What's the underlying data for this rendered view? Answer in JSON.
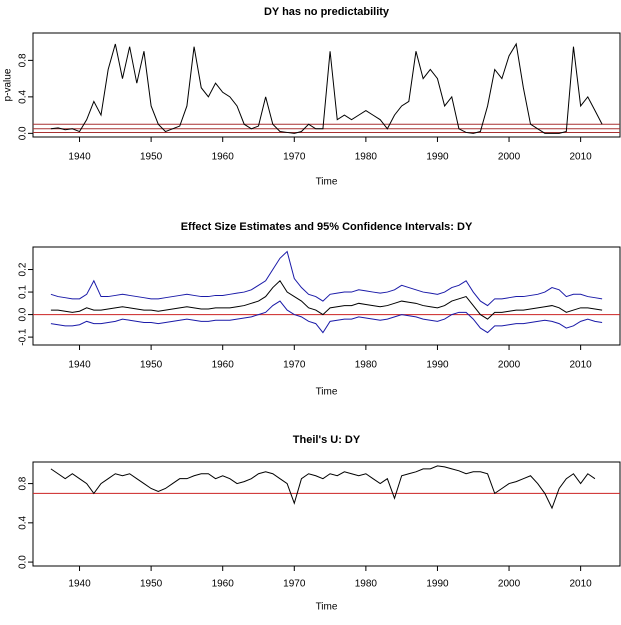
{
  "chart_data": [
    {
      "type": "line",
      "title": "DY has no predictability",
      "xlabel": "Time",
      "ylabel": "p-value",
      "xlim": [
        1933.5,
        2015.5
      ],
      "xticks": [
        1940,
        1950,
        1960,
        1970,
        1980,
        1990,
        2000,
        2010
      ],
      "ylim": [
        -0.04,
        1.1
      ],
      "yticks": [
        {
          "value": 0,
          "label": "0.0"
        },
        0.4,
        0.8
      ],
      "x": [
        1936,
        1937,
        1938,
        1939,
        1940,
        1941,
        1942,
        1943,
        1944,
        1945,
        1946,
        1947,
        1948,
        1949,
        1950,
        1951,
        1952,
        1953,
        1954,
        1955,
        1956,
        1957,
        1958,
        1959,
        1960,
        1961,
        1962,
        1963,
        1964,
        1965,
        1966,
        1967,
        1968,
        1969,
        1970,
        1971,
        1972,
        1973,
        1974,
        1975,
        1976,
        1977,
        1978,
        1979,
        1980,
        1981,
        1982,
        1983,
        1984,
        1985,
        1986,
        1987,
        1988,
        1989,
        1990,
        1991,
        1992,
        1993,
        1994,
        1995,
        1996,
        1997,
        1998,
        1999,
        2000,
        2001,
        2002,
        2003,
        2004,
        2005,
        2006,
        2007,
        2008,
        2009,
        2010,
        2011,
        2012,
        2013
      ],
      "series": [
        {
          "color": "#000000",
          "values": [
            0.05,
            0.06,
            0.04,
            0.05,
            0.02,
            0.15,
            0.35,
            0.2,
            0.7,
            0.98,
            0.6,
            0.95,
            0.55,
            0.9,
            0.3,
            0.1,
            0.02,
            0.05,
            0.08,
            0.3,
            0.95,
            0.5,
            0.4,
            0.55,
            0.45,
            0.4,
            0.3,
            0.1,
            0.05,
            0.08,
            0.4,
            0.1,
            0.02,
            0.01,
            0.0,
            0.02,
            0.1,
            0.05,
            0.05,
            0.9,
            0.15,
            0.2,
            0.15,
            0.2,
            0.25,
            0.2,
            0.15,
            0.05,
            0.2,
            0.3,
            0.35,
            0.9,
            0.6,
            0.7,
            0.6,
            0.3,
            0.4,
            0.05,
            0.01,
            0.0,
            0.02,
            0.3,
            0.7,
            0.6,
            0.85,
            0.98,
            0.5,
            0.1,
            0.05,
            0.0,
            0.0,
            0.0,
            0.02,
            0.95,
            0.3,
            0.4,
            0.25,
            0.1
          ]
        }
      ],
      "hlines": {
        "color": "#a83232",
        "values": [
          0.01,
          0.05,
          0.1
        ]
      }
    },
    {
      "type": "line",
      "title": "Effect Size Estimates and 95% Confidence Intervals: DY",
      "xlabel": "Time",
      "xlim": [
        1933.5,
        2015.5
      ],
      "xticks": [
        1940,
        1950,
        1960,
        1970,
        1980,
        1990,
        2000,
        2010
      ],
      "ylim": [
        -0.135,
        0.3
      ],
      "yticks": [
        -0.1,
        {
          "value": 0,
          "label": "0.0"
        },
        0.1,
        0.2
      ],
      "x": [
        1936,
        1937,
        1938,
        1939,
        1940,
        1941,
        1942,
        1943,
        1944,
        1945,
        1946,
        1947,
        1948,
        1949,
        1950,
        1951,
        1952,
        1953,
        1954,
        1955,
        1956,
        1957,
        1958,
        1959,
        1960,
        1961,
        1962,
        1963,
        1964,
        1965,
        1966,
        1967,
        1968,
        1969,
        1970,
        1971,
        1972,
        1973,
        1974,
        1975,
        1976,
        1977,
        1978,
        1979,
        1980,
        1981,
        1982,
        1983,
        1984,
        1985,
        1986,
        1987,
        1988,
        1989,
        1990,
        1991,
        1992,
        1993,
        1994,
        1995,
        1996,
        1997,
        1998,
        1999,
        2000,
        2001,
        2002,
        2003,
        2004,
        2005,
        2006,
        2007,
        2008,
        2009,
        2010,
        2011,
        2012,
        2013
      ],
      "series": [
        {
          "color": "#1a1aa8",
          "values": [
            0.09,
            0.08,
            0.075,
            0.07,
            0.07,
            0.09,
            0.15,
            0.08,
            0.08,
            0.085,
            0.09,
            0.085,
            0.08,
            0.075,
            0.07,
            0.07,
            0.075,
            0.08,
            0.085,
            0.09,
            0.085,
            0.08,
            0.08,
            0.085,
            0.085,
            0.09,
            0.095,
            0.1,
            0.11,
            0.13,
            0.15,
            0.2,
            0.25,
            0.28,
            0.16,
            0.12,
            0.09,
            0.08,
            0.06,
            0.09,
            0.095,
            0.1,
            0.1,
            0.11,
            0.105,
            0.1,
            0.095,
            0.1,
            0.11,
            0.13,
            0.12,
            0.11,
            0.1,
            0.095,
            0.09,
            0.1,
            0.12,
            0.13,
            0.15,
            0.1,
            0.06,
            0.04,
            0.07,
            0.07,
            0.075,
            0.08,
            0.08,
            0.085,
            0.09,
            0.1,
            0.12,
            0.11,
            0.08,
            0.09,
            0.09,
            0.08,
            0.075,
            0.07
          ]
        },
        {
          "color": "#000000",
          "values": [
            0.02,
            0.02,
            0.015,
            0.01,
            0.015,
            0.03,
            0.02,
            0.02,
            0.025,
            0.03,
            0.035,
            0.03,
            0.025,
            0.02,
            0.02,
            0.015,
            0.02,
            0.025,
            0.03,
            0.035,
            0.03,
            0.025,
            0.025,
            0.03,
            0.03,
            0.03,
            0.035,
            0.04,
            0.05,
            0.06,
            0.08,
            0.12,
            0.15,
            0.1,
            0.08,
            0.06,
            0.03,
            0.02,
            0.0,
            0.03,
            0.035,
            0.04,
            0.04,
            0.05,
            0.045,
            0.04,
            0.035,
            0.04,
            0.05,
            0.06,
            0.055,
            0.05,
            0.04,
            0.035,
            0.03,
            0.04,
            0.06,
            0.07,
            0.08,
            0.04,
            0.0,
            -0.02,
            0.01,
            0.01,
            0.015,
            0.02,
            0.02,
            0.025,
            0.03,
            0.035,
            0.04,
            0.03,
            0.01,
            0.02,
            0.03,
            0.03,
            0.025,
            0.02
          ]
        },
        {
          "color": "#1a1aa8",
          "values": [
            -0.04,
            -0.045,
            -0.05,
            -0.05,
            -0.045,
            -0.03,
            -0.04,
            -0.04,
            -0.035,
            -0.03,
            -0.02,
            -0.025,
            -0.03,
            -0.035,
            -0.035,
            -0.04,
            -0.035,
            -0.03,
            -0.025,
            -0.02,
            -0.025,
            -0.03,
            -0.03,
            -0.025,
            -0.025,
            -0.025,
            -0.02,
            -0.015,
            -0.01,
            0.0,
            0.01,
            0.04,
            0.06,
            0.02,
            0.0,
            -0.01,
            -0.03,
            -0.04,
            -0.08,
            -0.03,
            -0.025,
            -0.02,
            -0.02,
            -0.01,
            -0.015,
            -0.02,
            -0.025,
            -0.02,
            -0.01,
            0.0,
            -0.005,
            -0.01,
            -0.02,
            -0.025,
            -0.03,
            -0.02,
            0.0,
            0.01,
            0.01,
            -0.02,
            -0.06,
            -0.08,
            -0.05,
            -0.05,
            -0.045,
            -0.04,
            -0.04,
            -0.035,
            -0.03,
            -0.025,
            -0.03,
            -0.04,
            -0.06,
            -0.05,
            -0.03,
            -0.02,
            -0.03,
            -0.035
          ]
        }
      ],
      "hlines": {
        "color": "#cc2222",
        "values": [
          0
        ]
      }
    },
    {
      "type": "line",
      "title": "Theil's U: DY",
      "xlabel": "Time",
      "xlim": [
        1933.5,
        2015.5
      ],
      "xticks": [
        1940,
        1950,
        1960,
        1970,
        1980,
        1990,
        2000,
        2010
      ],
      "ylim": [
        -0.04,
        1.02
      ],
      "yticks": [
        {
          "value": 0,
          "label": "0.0"
        },
        0.4,
        0.8
      ],
      "x": [
        1936,
        1937,
        1938,
        1939,
        1940,
        1941,
        1942,
        1943,
        1944,
        1945,
        1946,
        1947,
        1948,
        1949,
        1950,
        1951,
        1952,
        1953,
        1954,
        1955,
        1956,
        1957,
        1958,
        1959,
        1960,
        1961,
        1962,
        1963,
        1964,
        1965,
        1966,
        1967,
        1968,
        1969,
        1970,
        1971,
        1972,
        1973,
        1974,
        1975,
        1976,
        1977,
        1978,
        1979,
        1980,
        1981,
        1982,
        1983,
        1984,
        1985,
        1986,
        1987,
        1988,
        1989,
        1990,
        1991,
        1992,
        1993,
        1994,
        1995,
        1996,
        1997,
        1998,
        1999,
        2000,
        2001,
        2002,
        2003,
        2004,
        2005,
        2006,
        2007,
        2008,
        2009,
        2010,
        2011,
        2012
      ],
      "series": [
        {
          "color": "#000000",
          "values": [
            0.95,
            0.9,
            0.85,
            0.9,
            0.85,
            0.8,
            0.7,
            0.8,
            0.85,
            0.9,
            0.88,
            0.9,
            0.85,
            0.8,
            0.75,
            0.72,
            0.75,
            0.8,
            0.85,
            0.85,
            0.88,
            0.9,
            0.9,
            0.85,
            0.88,
            0.85,
            0.8,
            0.82,
            0.85,
            0.9,
            0.92,
            0.9,
            0.85,
            0.8,
            0.6,
            0.85,
            0.9,
            0.88,
            0.85,
            0.9,
            0.88,
            0.92,
            0.9,
            0.88,
            0.9,
            0.85,
            0.8,
            0.85,
            0.65,
            0.88,
            0.9,
            0.92,
            0.95,
            0.95,
            0.98,
            0.97,
            0.95,
            0.93,
            0.9,
            0.92,
            0.92,
            0.9,
            0.7,
            0.75,
            0.8,
            0.82,
            0.85,
            0.88,
            0.8,
            0.7,
            0.55,
            0.75,
            0.85,
            0.9,
            0.8,
            0.9,
            0.85
          ]
        }
      ],
      "hlines": {
        "color": "#cc2222",
        "values": [
          0.7
        ]
      }
    }
  ]
}
